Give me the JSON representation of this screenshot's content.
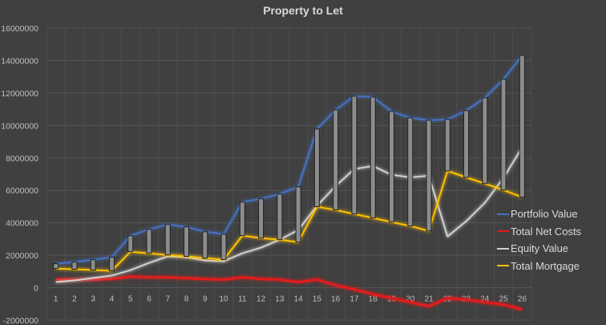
{
  "chart_data": {
    "type": "line",
    "title": "Property to Let",
    "xlabel": "",
    "ylabel": "",
    "ylim": [
      -2000000,
      16000000
    ],
    "yticks": [
      -2000000,
      0,
      2000000,
      4000000,
      6000000,
      8000000,
      10000000,
      12000000,
      14000000,
      16000000
    ],
    "ytick_labels": [
      "-2000000",
      "0",
      "2000000",
      "4000000",
      "6000000",
      "8000000",
      "10000000",
      "12000000",
      "14000000",
      "16000000"
    ],
    "categories": [
      "1",
      "2",
      "3",
      "4",
      "5",
      "6",
      "7",
      "8",
      "9",
      "10",
      "11",
      "12",
      "13",
      "14",
      "15",
      "16",
      "17",
      "18",
      "19",
      "20",
      "21",
      "22",
      "23",
      "24",
      "25",
      "26"
    ],
    "grid": true,
    "legend_position": "right",
    "high_low_bars": {
      "from": "Total Mortgage",
      "to": "Portfolio Value",
      "color": "#8c8c8c"
    },
    "series": [
      {
        "name": "Portfolio Value",
        "color": "#4472c4",
        "values": [
          1480000,
          1580000,
          1730000,
          1880000,
          3200000,
          3600000,
          3900000,
          3750000,
          3450000,
          3300000,
          5280000,
          5480000,
          5780000,
          6220000,
          9780000,
          10960000,
          11800000,
          11750000,
          10860000,
          10470000,
          10320000,
          10370000,
          10910000,
          11700000,
          12840000,
          14320000
        ]
      },
      {
        "name": "Total Net Costs",
        "color": "#e31a1c",
        "values": [
          500000,
          500000,
          500000,
          540000,
          690000,
          640000,
          640000,
          590000,
          540000,
          500000,
          640000,
          540000,
          500000,
          350000,
          500000,
          150000,
          -100000,
          -400000,
          -640000,
          -890000,
          -1140000,
          -640000,
          -740000,
          -890000,
          -1040000,
          -1330000
        ]
      },
      {
        "name": "Equity Value",
        "color": "#d0d0d0",
        "values": [
          350000,
          450000,
          600000,
          750000,
          1080000,
          1530000,
          1930000,
          1880000,
          1680000,
          1630000,
          2120000,
          2470000,
          2960000,
          3560000,
          5040000,
          6270000,
          7310000,
          7500000,
          6960000,
          6800000,
          6900000,
          3160000,
          4100000,
          5230000,
          6770000,
          8640000
        ]
      },
      {
        "name": "Total Mortgage",
        "color": "#ffc000",
        "values": [
          1180000,
          1140000,
          1090000,
          1040000,
          2220000,
          2120000,
          2020000,
          1930000,
          1830000,
          1730000,
          3210000,
          3060000,
          2960000,
          2810000,
          4990000,
          4790000,
          4540000,
          4300000,
          4050000,
          3800000,
          3500000,
          7200000,
          6800000,
          6420000,
          6020000,
          5580000
        ]
      }
    ]
  }
}
